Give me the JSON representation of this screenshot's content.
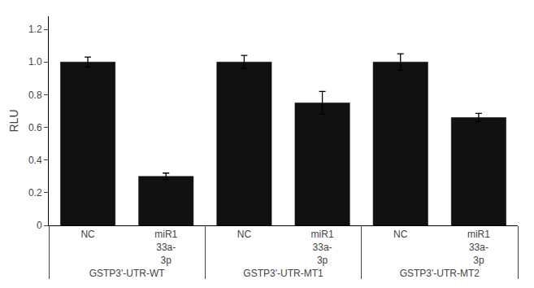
{
  "chart_data": {
    "type": "bar",
    "ylabel": "RLU",
    "groups": [
      "GSTP3'-UTR-WT",
      "GSTP3'-UTR-WT",
      "GSTP3'-UTR-MT1",
      "GSTP3'-UTR-MT1",
      "GSTP3'-UTR-MT2",
      "GSTP3'-UTR-MT2"
    ],
    "categories": [
      "NC",
      "miR1\n33a-\n3p",
      "NC",
      "miR1\n33a-\n3p",
      "NC",
      "miR1\n33a-\n3p"
    ],
    "values": [
      1.0,
      0.3,
      1.0,
      0.75,
      1.0,
      0.66
    ],
    "errors": [
      0.03,
      0.02,
      0.04,
      0.07,
      0.05,
      0.025
    ],
    "color": "#111111",
    "ylim": [
      0,
      1.28
    ],
    "yticks": [
      0,
      0.2,
      0.4,
      0.6,
      0.8,
      {
        "value": 1.0,
        "label": "1.0"
      },
      1.2
    ],
    "grid": false
  }
}
